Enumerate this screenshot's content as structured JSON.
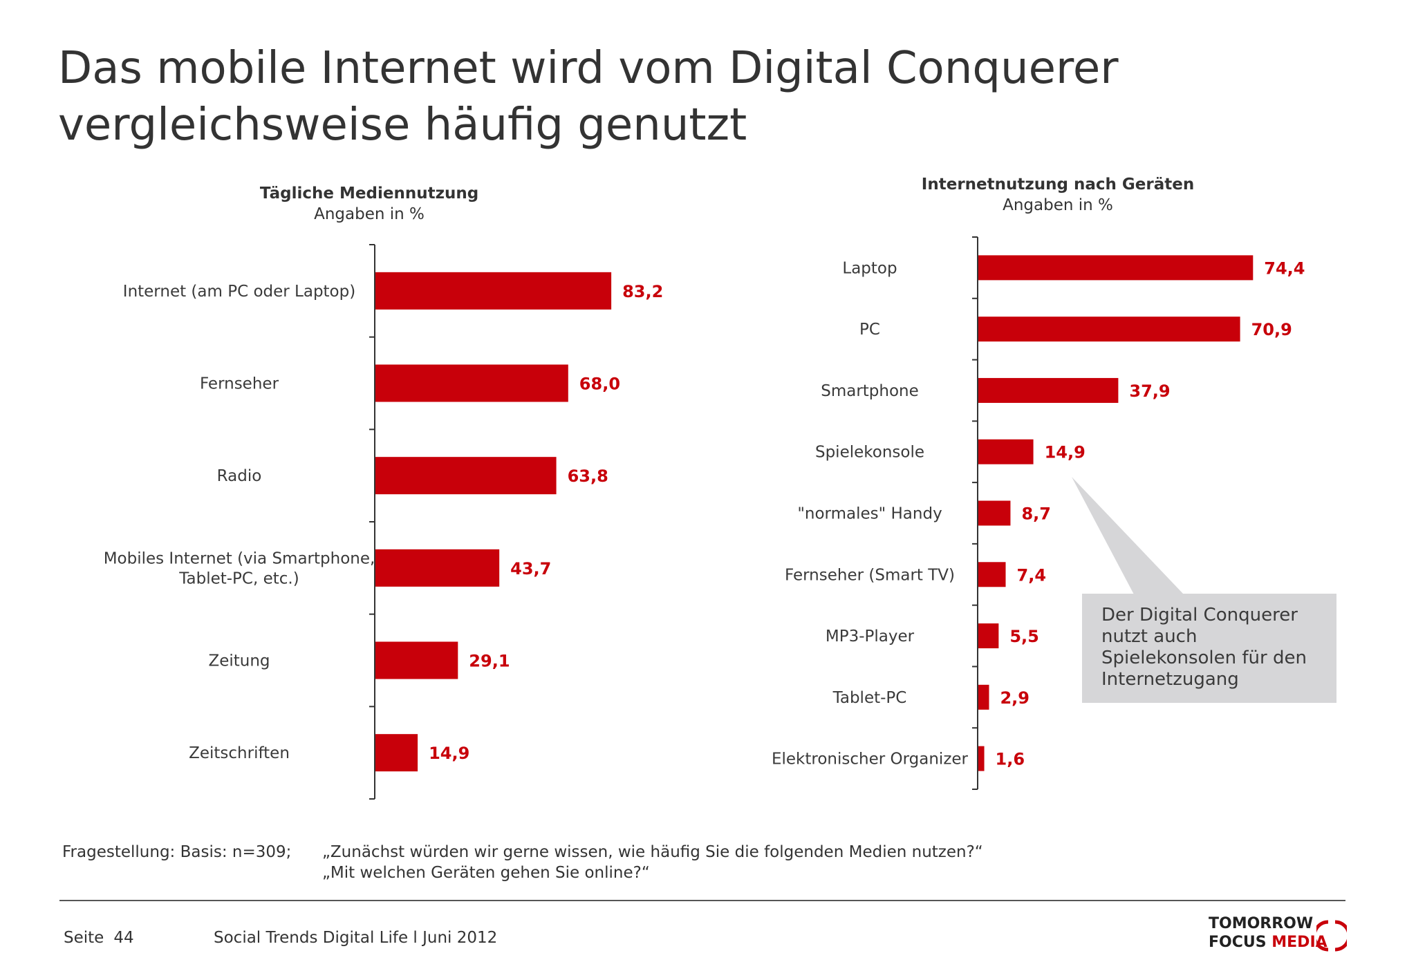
{
  "title": {
    "line1": "Das mobile Internet wird vom Digital Conquerer",
    "line2": "vergleichsweise häufig genutzt"
  },
  "chart_data": [
    {
      "type": "bar",
      "orientation": "horizontal",
      "title": "Tägliche Mediennutzung",
      "subtitle": "Angaben in %",
      "categories": [
        [
          "Internet (am PC oder Laptop)"
        ],
        [
          "Fernseher"
        ],
        [
          "Radio"
        ],
        [
          "Mobiles Internet (via Smartphone,",
          "Tablet-PC, etc.)"
        ],
        [
          "Zeitung"
        ],
        [
          "Zeitschriften"
        ]
      ],
      "values": [
        83.2,
        68.0,
        63.8,
        43.7,
        29.1,
        14.9
      ],
      "value_labels": [
        "83,2",
        "68,0",
        "63,8",
        "43,7",
        "29,1",
        "14,9"
      ],
      "xlim": [
        0,
        100
      ],
      "bar_color": "#c8000a"
    },
    {
      "type": "bar",
      "orientation": "horizontal",
      "title": "Internetnutzung nach Geräten",
      "subtitle": "Angaben in %",
      "categories": [
        [
          "Laptop"
        ],
        [
          "PC"
        ],
        [
          "Smartphone"
        ],
        [
          "Spielekonsole"
        ],
        [
          "\"normales\" Handy"
        ],
        [
          "Fernseher (Smart TV)"
        ],
        [
          "MP3-Player"
        ],
        [
          "Tablet-PC"
        ],
        [
          "Elektronischer Organizer"
        ]
      ],
      "values": [
        74.4,
        70.9,
        37.9,
        14.9,
        8.7,
        7.4,
        5.5,
        2.9,
        1.6
      ],
      "value_labels": [
        "74,4",
        "70,9",
        "37,9",
        "14,9",
        "8,7",
        "7,4",
        "5,5",
        "2,9",
        "1,6"
      ],
      "xlim": [
        0,
        100
      ],
      "bar_color": "#c8000a"
    }
  ],
  "callout": {
    "text": "Der Digital Conquerer nutzt auch Spielekonsolen für den Internetzugang",
    "lines": [
      "Der Digital Conquerer",
      "nutzt auch",
      "Spielekonsolen für den",
      "Internetzugang"
    ],
    "color": "#d6d6d8"
  },
  "footnote": {
    "label": "Fragestellung: Basis: n=309;",
    "question1": "„Zunächst würden wir gerne wissen, wie häufig Sie die folgenden Medien nutzen?“",
    "question2": "„Mit welchen Geräten gehen Sie online?“"
  },
  "footer": {
    "page_label": "Seite",
    "page_number": "44",
    "report": "Social Trends Digital Life l Juni 2012"
  },
  "logo": {
    "line1": "TOMORROW",
    "line2a": "FOCUS",
    "line2b": "MEDIA"
  },
  "colors": {
    "accent": "#c8000a",
    "text": "#333333"
  }
}
